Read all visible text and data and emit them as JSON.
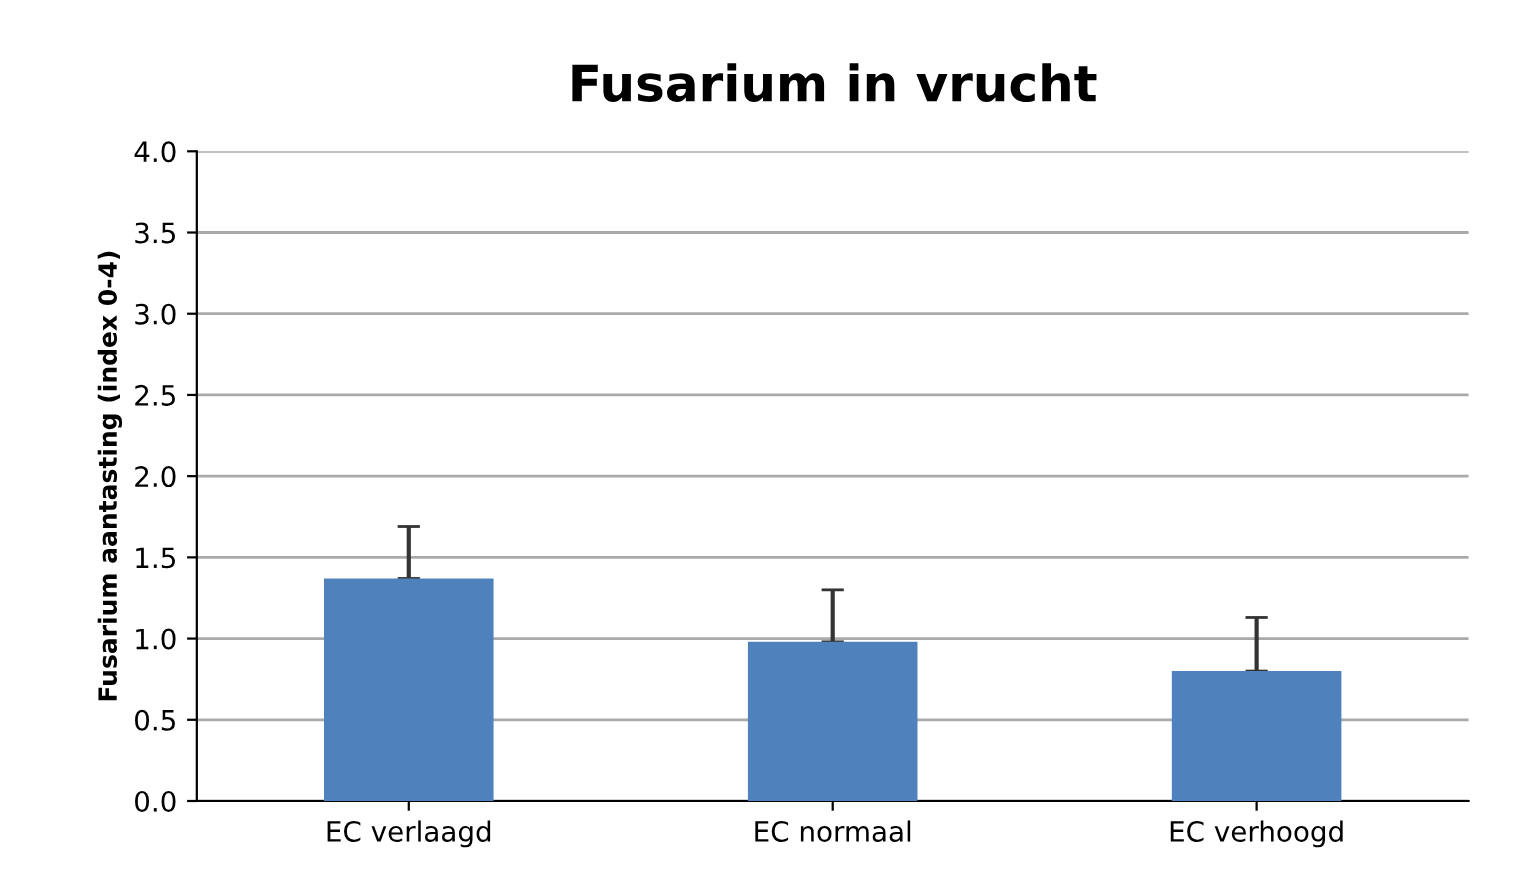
{
  "chart_data": {
    "type": "bar",
    "title": "Fusarium in vrucht",
    "ylabel": "Fusarium aantasting (index 0-4)",
    "categories": [
      "EC verlaagd",
      "EC normaal",
      "EC verhoogd"
    ],
    "color": "#4f81bd",
    "values": [
      1.37,
      0.98,
      0.8
    ],
    "errors": [
      [
        1.37,
        1.69
      ],
      [
        0.98,
        1.3
      ],
      [
        0.8,
        1.13
      ]
    ],
    "ylim": [
      0,
      4
    ],
    "yticks": [
      {
        "value": 0,
        "label": "0.0"
      },
      {
        "value": 0.5,
        "label": "0.5"
      },
      {
        "value": 1,
        "label": "1.0"
      },
      {
        "value": 1.5,
        "label": "1.5"
      },
      {
        "value": 2,
        "label": "2.0"
      },
      {
        "value": 2.5,
        "label": "2.5"
      },
      {
        "value": 3,
        "label": "3.0"
      },
      {
        "value": 3.5,
        "label": "3.5"
      },
      {
        "value": 4,
        "label": "4.0"
      }
    ],
    "grid": "y",
    "legend": false
  }
}
